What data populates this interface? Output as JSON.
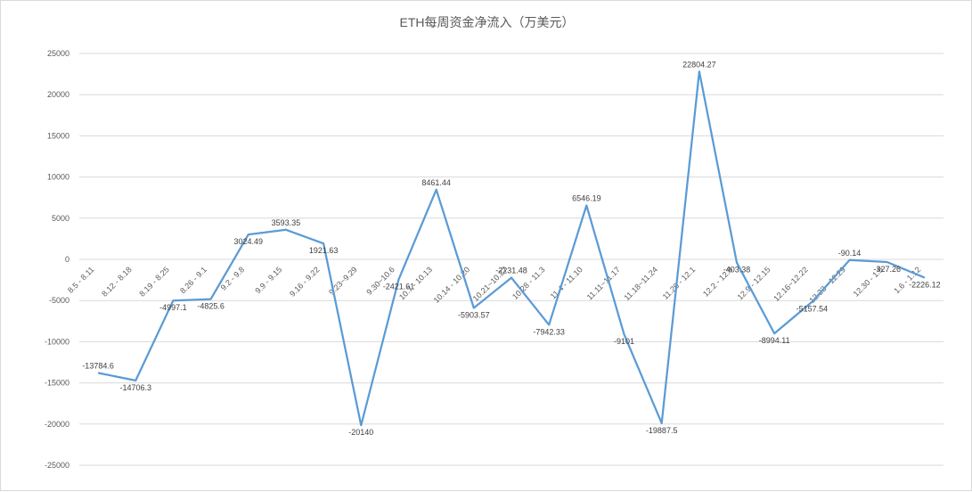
{
  "chart_data": {
    "type": "line",
    "title": "ETH每周资金净流入（万美元）",
    "xlabel": "",
    "ylabel": "",
    "ylim": [
      -25000,
      25000
    ],
    "yticks": [
      25000,
      20000,
      15000,
      10000,
      5000,
      0,
      -5000,
      -10000,
      -15000,
      -20000,
      -25000
    ],
    "grid": true,
    "legend": "none",
    "line_color": "#5b9bd5",
    "categories": [
      "8.5 - 8.11",
      "8.12 - 8.18",
      "8.19 - 8.25",
      "8.26 - 9.1",
      "9.2 - 9.8",
      "9.9 - 9.15",
      "9.16 - 9.22",
      "9.23~9.29",
      "9.30~10.6",
      "10.7 - 10.13",
      "10.14 - 10.20",
      "10.21~10.27",
      "10.28 - 11.3",
      "11.4 - 11.10",
      "11.11~11.17",
      "11.18~11.24",
      "11.26 - 12.1",
      "12.2 - 12.8",
      "12.9 - 12.15",
      "12.16~12.22",
      "12.23 - 12.29",
      "12.30 - 1.5",
      "1.6 - 1.12"
    ],
    "values": [
      -13784.6,
      -14706.3,
      -4997.1,
      -4825.6,
      3024.49,
      3593.35,
      1921.63,
      -20140,
      -2421.61,
      8461.44,
      -5903.57,
      -2231.48,
      -7942.33,
      6546.19,
      -9101,
      -19887.5,
      22804.27,
      -403.38,
      -8994.11,
      -5157.54,
      -90.14,
      -327.26,
      -2226.12
    ],
    "value_labels": [
      "-13784.6",
      "-14706.3",
      "-4997.1",
      "-4825.6",
      "3024.49",
      "3593.35",
      "1921.63",
      "-20140",
      "-2421.61",
      "8461.44",
      "-5903.57",
      "-2231.48",
      "-7942.33",
      "6546.19",
      "-9101",
      "-19887.5",
      "22804.27",
      "-403.38",
      "-8994.11",
      "-5157.54",
      "-90.14",
      "-327.26",
      "-2226.12"
    ]
  }
}
